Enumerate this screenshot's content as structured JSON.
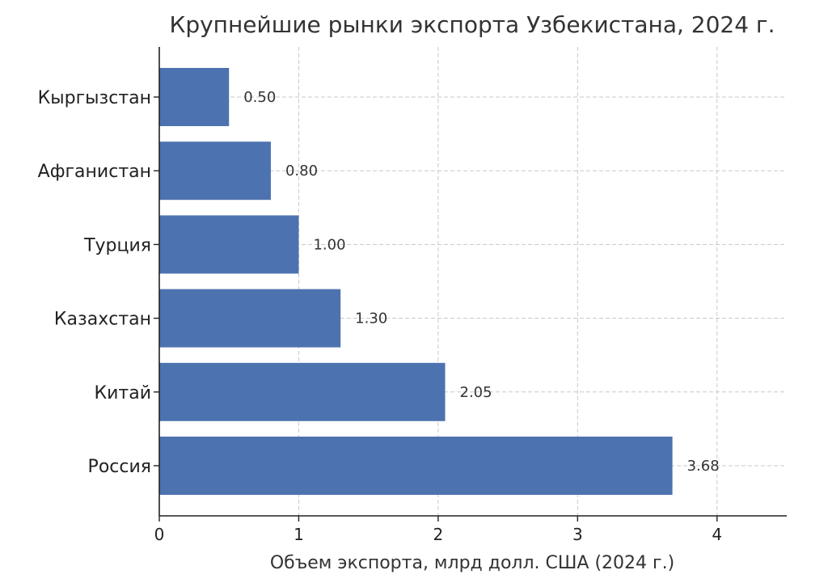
{
  "chart_data": {
    "type": "bar",
    "orientation": "horizontal",
    "title": "Крупнейшие рынки экспорта Узбекистана, 2024 г.",
    "xlabel": "Объем экспорта, млрд долл. США (2024 г.)",
    "ylabel": "",
    "categories": [
      "Россия",
      "Китай",
      "Казахстан",
      "Турция",
      "Афганистан",
      "Кыргызстан"
    ],
    "values": [
      3.68,
      2.05,
      1.3,
      1.0,
      0.8,
      0.5
    ],
    "value_labels": [
      "3.68",
      "2.05",
      "1.30",
      "1.00",
      "0.80",
      "0.50"
    ],
    "xlim": [
      0,
      4.5
    ],
    "xticks": [
      0,
      1,
      2,
      3,
      4
    ],
    "xtick_labels": [
      "0",
      "1",
      "2",
      "3",
      "4"
    ],
    "grid": true,
    "bar_color": "#4c72b0"
  }
}
